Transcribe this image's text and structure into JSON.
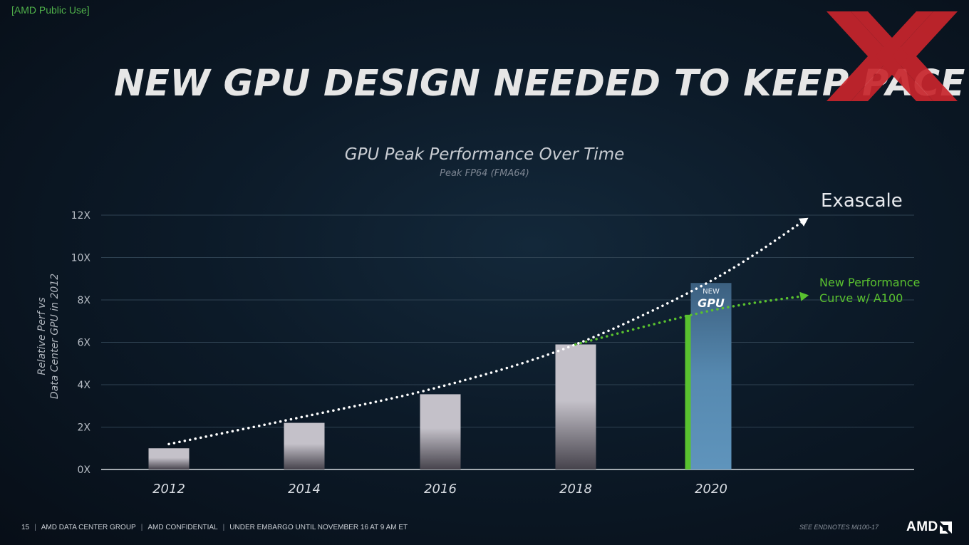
{
  "header": {
    "classification": "[AMD Public Use]",
    "title": "NEW GPU DESIGN NEEDED TO KEEP PACE",
    "brand_icon": "red-xx-logo"
  },
  "chart_data": {
    "type": "bar",
    "title": "GPU Peak Performance Over Time",
    "subtitle": "Peak FP64 (FMA64)",
    "ylabel_lines": [
      "Relative Perf vs",
      "Data Center GPU in 2012"
    ],
    "xlabel": "",
    "ylim": [
      0,
      12
    ],
    "yticks": [
      0,
      2,
      4,
      6,
      8,
      10,
      12
    ],
    "ytick_labels": [
      "0X",
      "2X",
      "4X",
      "6X",
      "8X",
      "10X",
      "12X"
    ],
    "categories": [
      "2012",
      "2014",
      "2016",
      "2018",
      "2020"
    ],
    "values": [
      1.0,
      2.2,
      3.55,
      5.9,
      8.8
    ],
    "highlight": {
      "category": "2020",
      "label_top": "NEW",
      "label_main": "GPU",
      "color": "#5689b0"
    },
    "competitor_bar": {
      "category": "2020",
      "value": 7.3,
      "color": "#59c12f"
    },
    "trends": [
      {
        "name": "Exascale",
        "color": "#ffffff",
        "points": [
          [
            2012,
            1.2
          ],
          [
            2014,
            2.5
          ],
          [
            2016,
            3.9
          ],
          [
            2018,
            5.9
          ],
          [
            2020,
            8.9
          ],
          [
            2021.4,
            11.8
          ]
        ]
      },
      {
        "name": "New Performance Curve w/ A100",
        "label_lines": [
          "New Performance",
          "Curve w/ A100"
        ],
        "color": "#59c12f",
        "points": [
          [
            2018,
            5.9
          ],
          [
            2020,
            7.5
          ],
          [
            2021.4,
            8.2
          ]
        ]
      }
    ],
    "grid": true,
    "bar_color": "#c4c1c9"
  },
  "footer": {
    "page_number": "15",
    "items": [
      "AMD DATA CENTER GROUP",
      "AMD CONFIDENTIAL",
      "UNDER EMBARGO UNTIL NOVEMBER 16 AT 9 AM ET"
    ],
    "endnotes": "SEE ENDNOTES MI100-17",
    "logo_text": "AMD"
  }
}
